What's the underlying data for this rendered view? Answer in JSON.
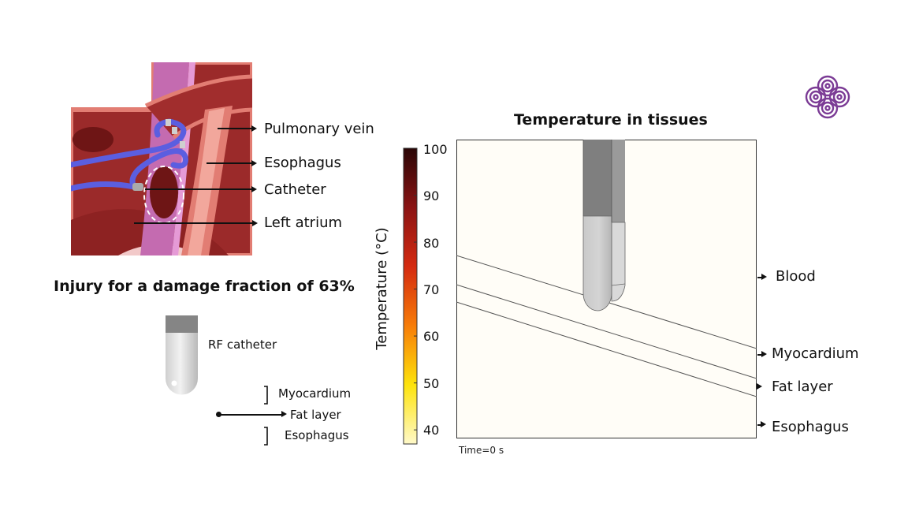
{
  "anatomy": {
    "labels": {
      "pulmonary_vein": "Pulmonary vein",
      "esophagus": "Esophagus",
      "catheter": "Catheter",
      "left_atrium": "Left atrium"
    }
  },
  "injury": {
    "heading": "Injury for a damage fraction of 63%",
    "rf_catheter": "RF catheter",
    "myocardium": "Myocardium",
    "fat_layer": "Fat layer",
    "esophagus": "Esophagus"
  },
  "chart_data": {
    "type": "heatmap",
    "title": "Temperature in tissues",
    "colorbar": {
      "label": "Temperature (°C)",
      "range": [
        37,
        100
      ],
      "ticks": [
        "100",
        "90",
        "80",
        "70",
        "60",
        "50",
        "40"
      ],
      "colors": [
        "#2a0606",
        "#8b1414",
        "#d42a10",
        "#f77c08",
        "#fde30c",
        "#fff9c9"
      ]
    },
    "time_label": "Time=0 s",
    "layers": {
      "blood": "Blood",
      "myocardium": "Myocardium",
      "fat_layer": "Fat layer",
      "esophagus": "Esophagus"
    }
  },
  "logo": {
    "name": "purple-rings-logo",
    "color": "#7b3b95"
  }
}
